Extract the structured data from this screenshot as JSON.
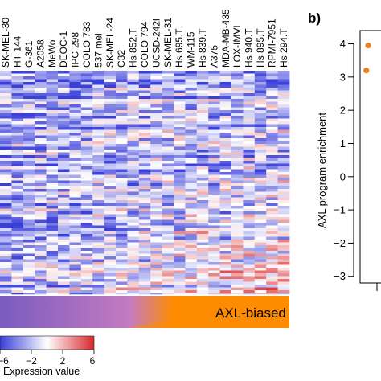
{
  "chart_data": [
    {
      "type": "heatmap",
      "title": "",
      "xlabel": "",
      "ylabel": "",
      "categories": [
        "SK-MEL-30",
        "HT-144",
        "G-361",
        "A2058",
        "MeWo",
        "DEOC-1",
        "IPC-298",
        "COLO 783",
        "537 mel",
        "SK-MEL-24",
        "C32",
        "Hs 852.T",
        "COLO 794",
        "UCSD-242l",
        "SK-MEL-31",
        "Hs 695.T",
        "WM-115",
        "Hs 839.T",
        "A375",
        "MDA-MB-435",
        "LOX-IMVI",
        "Hs 940.T",
        "Hs 895.T",
        "RPMI-7951",
        "Hs 294.T"
      ],
      "color_scale": {
        "low": "#3a3fd8",
        "mid": "#ffffff",
        "high": "#d8262b",
        "range": [
          -6,
          6
        ],
        "ticks": [
          "−6",
          "−2",
          "2",
          "6"
        ],
        "label": "Expression value"
      },
      "annotation_bar": {
        "label": "AXL-biased",
        "left_color": "#7a5bc0",
        "right_color": "#ff8c00"
      }
    },
    {
      "type": "scatter",
      "panel_label": "b)",
      "ylabel": "AXL program enrichment",
      "ylim": [
        -3.2,
        4.4
      ],
      "yticks": [
        -3,
        -2,
        -1,
        0,
        1,
        2,
        3,
        4
      ],
      "points": [
        {
          "x": 1.3,
          "y": 3.95,
          "color": "#e8821e"
        },
        {
          "x": 1,
          "y": 3.2,
          "color": "#e8821e"
        }
      ]
    }
  ]
}
